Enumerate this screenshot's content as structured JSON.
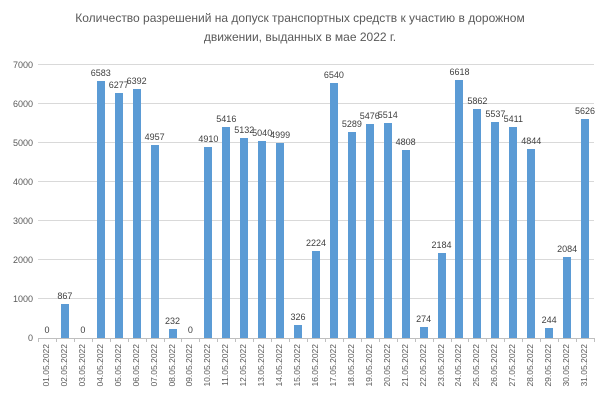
{
  "chart": {
    "title": "Количество разрешений на допуск транспортных средств к участию в дорожном движении, выданных в мае 2022 г."
  },
  "chart_data": {
    "type": "bar",
    "title": "Количество разрешений на допуск транспортных средств к участию в дорожном движении, выданных в мае 2022 г.",
    "categories": [
      "01.05.2022",
      "02.05.2022",
      "03.05.2022",
      "04.05.2022",
      "05.05.2022",
      "06.05.2022",
      "07.05.2022",
      "08.05.2022",
      "09.05.2022",
      "10.05.2022",
      "11.05.2022",
      "12.05.2022",
      "13.05.2022",
      "14.05.2022",
      "15.05.2022",
      "16.05.2022",
      "17.05.2022",
      "18.05.2022",
      "19.05.2022",
      "20.05.2022",
      "21.05.2022",
      "22.05.2022",
      "23.05.2022",
      "24.05.2022",
      "25.05.2022",
      "26.05.2022",
      "27.05.2022",
      "28.05.2022",
      "29.05.2022",
      "30.05.2022",
      "31.05.2022"
    ],
    "values": [
      0,
      867,
      0,
      6583,
      6277,
      6392,
      4957,
      232,
      0,
      4910,
      5416,
      5132,
      5040,
      4999,
      326,
      2224,
      6540,
      5289,
      5476,
      5514,
      4808,
      274,
      2184,
      6618,
      5862,
      5537,
      5411,
      4844,
      244,
      2084,
      5626
    ],
    "xlabel": "",
    "ylabel": "",
    "ylim": [
      0,
      7000
    ],
    "yticks": [
      0,
      1000,
      2000,
      3000,
      4000,
      5000,
      6000,
      7000
    ],
    "grid": true,
    "legend": false,
    "data_labels": true,
    "bar_color": "#5b9bd5",
    "gridline_color": "#d9d9d9",
    "axis_color": "#bfbfbf",
    "title_color": "#595959",
    "label_color": "#404040",
    "tick_label_color": "#595959"
  }
}
